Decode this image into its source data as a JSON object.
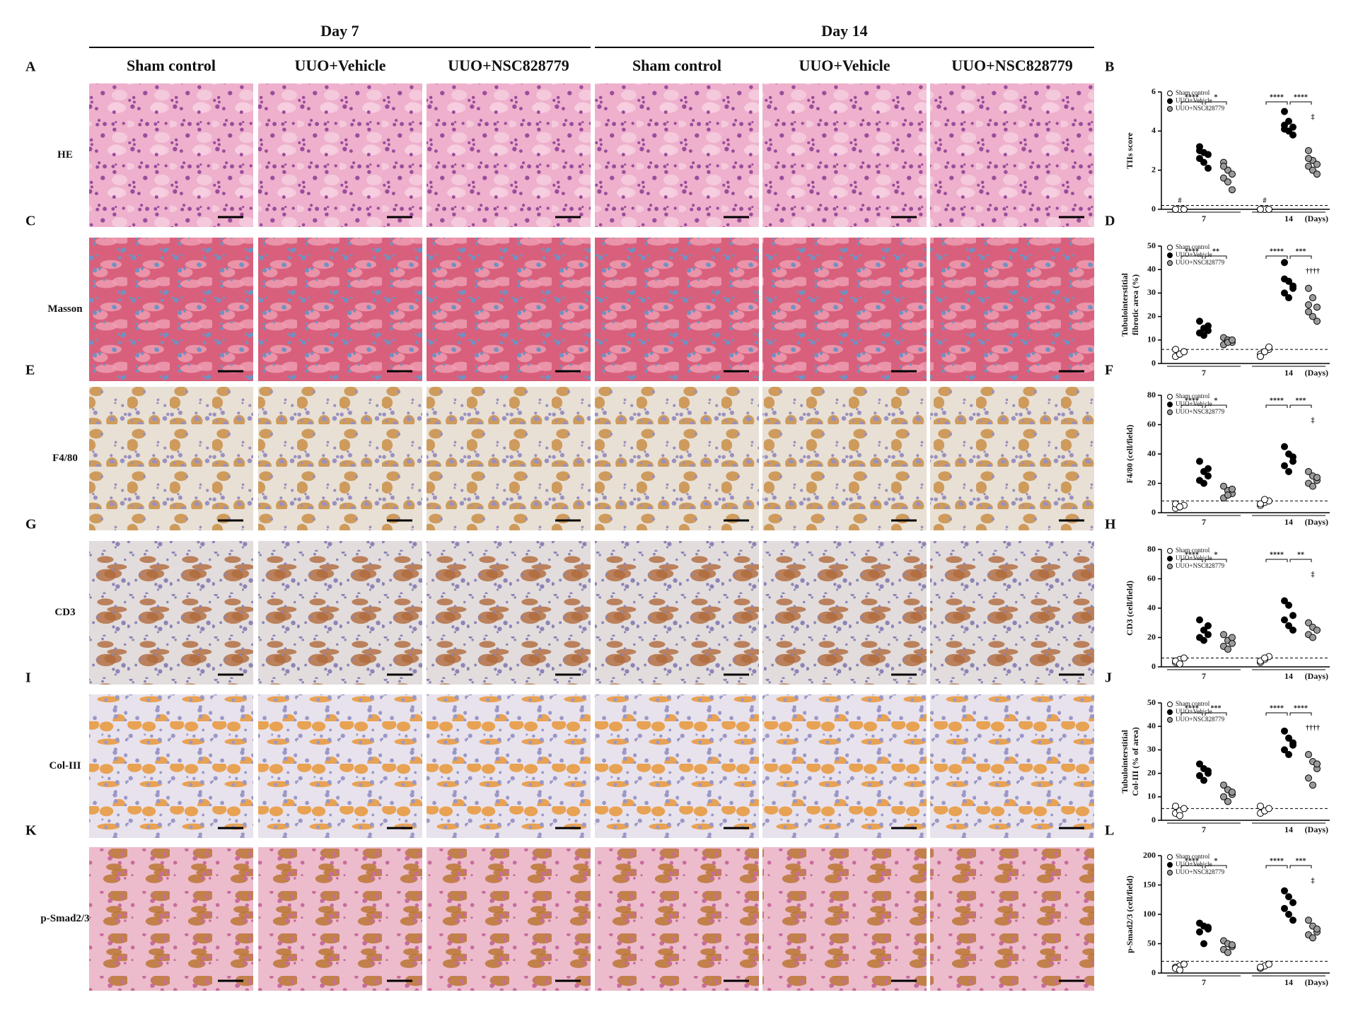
{
  "figure": {
    "column_groups": [
      "Day 7",
      "Day 14"
    ],
    "columns": [
      "Sham control",
      "UUO+Vehicle",
      "UUO+NSC828779",
      "Sham control",
      "UUO+Vehicle",
      "UUO+NSC828779"
    ],
    "rows": [
      {
        "letter": "A",
        "label": "HE"
      },
      {
        "letter": "C",
        "label": "Masson"
      },
      {
        "letter": "E",
        "label": "F4/80"
      },
      {
        "letter": "G",
        "label": "CD3"
      },
      {
        "letter": "I",
        "label": "Col-III"
      },
      {
        "letter": "K",
        "label": "p-Smad2/3"
      }
    ]
  },
  "chart_data": [
    {
      "type": "scatter",
      "letter": "B",
      "ylabel": [
        "TIIs score"
      ],
      "ylim": [
        0,
        6
      ],
      "yticks": [
        0,
        2,
        4,
        6
      ],
      "categories": [
        "7",
        "14"
      ],
      "xlabel": "(Days)",
      "reference_line": 0.2,
      "series": [
        {
          "name": "Sham control",
          "color": "#ffffff",
          "values": [
            [
              0,
              0,
              0,
              0,
              0,
              0,
              0
            ],
            [
              0,
              0,
              0,
              0,
              0,
              0,
              0
            ]
          ]
        },
        {
          "name": "UUO+Vehicle",
          "color": "#000000",
          "values": [
            [
              3.2,
              2.9,
              2.8,
              2.6,
              2.4,
              2.1,
              3.0
            ],
            [
              5.0,
              4.5,
              4.2,
              4.1,
              4.0,
              3.8,
              4.3
            ]
          ]
        },
        {
          "name": "UUO+NSC828779",
          "color": "#9a9a9a",
          "values": [
            [
              2.4,
              2.0,
              1.8,
              1.6,
              1.4,
              1.0,
              2.2
            ],
            [
              3.0,
              2.5,
              2.3,
              2.2,
              2.0,
              1.8,
              2.6
            ]
          ]
        }
      ],
      "brackets": [
        [
          "****",
          "*"
        ],
        [
          "****",
          "****"
        ]
      ],
      "marks_over_treated": [
        null,
        "‡"
      ],
      "marks_over_sham": [
        "#",
        "#"
      ]
    },
    {
      "type": "scatter",
      "letter": "D",
      "ylabel": [
        "Tubulointerstitial",
        "fibrotic area (%)"
      ],
      "ylim": [
        0,
        50
      ],
      "yticks": [
        0,
        10,
        20,
        30,
        40,
        50
      ],
      "categories": [
        "7",
        "14"
      ],
      "xlabel": "(Days)",
      "reference_line": 6,
      "series": [
        {
          "name": "Sham control",
          "color": "#ffffff",
          "values": [
            [
              3,
              4,
              5,
              6,
              4,
              5
            ],
            [
              4,
              5,
              6,
              3,
              5,
              7
            ]
          ]
        },
        {
          "name": "UUO+Vehicle",
          "color": "#000000",
          "values": [
            [
              18,
              15,
              14,
              13,
              12,
              16
            ],
            [
              43,
              35,
              33,
              30,
              28,
              32,
              36
            ]
          ]
        },
        {
          "name": "UUO+NSC828779",
          "color": "#9a9a9a",
          "values": [
            [
              11,
              10,
              9,
              8,
              9,
              10
            ],
            [
              32,
              28,
              24,
              22,
              20,
              18,
              25
            ]
          ]
        }
      ],
      "brackets": [
        [
          "****",
          "**"
        ],
        [
          "****",
          "***"
        ]
      ],
      "marks_over_treated": [
        null,
        "††††"
      ],
      "marks_over_sham": [
        null,
        null
      ]
    },
    {
      "type": "scatter",
      "letter": "F",
      "ylabel": [
        "F4/80 (cell/field)"
      ],
      "ylim": [
        0,
        80
      ],
      "yticks": [
        0,
        20,
        40,
        60,
        80
      ],
      "categories": [
        "7",
        "14"
      ],
      "xlabel": "(Days)",
      "reference_line": 8,
      "series": [
        {
          "name": "Sham control",
          "color": "#ffffff",
          "values": [
            [
              3,
              4,
              5,
              6,
              4
            ],
            [
              5,
              7,
              8,
              6,
              9
            ]
          ]
        },
        {
          "name": "UUO+Vehicle",
          "color": "#000000",
          "values": [
            [
              35,
              28,
              25,
              22,
              20,
              30
            ],
            [
              45,
              40,
              35,
              32,
              28,
              38
            ]
          ]
        },
        {
          "name": "UUO+NSC828779",
          "color": "#9a9a9a",
          "values": [
            [
              18,
              15,
              13,
              10,
              12,
              16
            ],
            [
              28,
              25,
              22,
              20,
              18,
              24
            ]
          ]
        }
      ],
      "brackets": [
        [
          "****",
          "*"
        ],
        [
          "****",
          "***"
        ]
      ],
      "marks_over_treated": [
        null,
        "‡"
      ],
      "marks_over_sham": [
        null,
        null
      ]
    },
    {
      "type": "scatter",
      "letter": "H",
      "ylabel": [
        "CD3 (cell/field)"
      ],
      "ylim": [
        0,
        80
      ],
      "yticks": [
        0,
        20,
        40,
        60,
        80
      ],
      "categories": [
        "7",
        "14"
      ],
      "xlabel": "(Days)",
      "reference_line": 6,
      "series": [
        {
          "name": "Sham control",
          "color": "#ffffff",
          "values": [
            [
              3,
              5,
              6,
              4,
              2
            ],
            [
              3,
              5,
              7,
              4,
              6
            ]
          ]
        },
        {
          "name": "UUO+Vehicle",
          "color": "#000000",
          "values": [
            [
              32,
              25,
              22,
              20,
              18,
              28
            ],
            [
              45,
              42,
              35,
              32,
              28,
              25
            ]
          ]
        },
        {
          "name": "UUO+NSC828779",
          "color": "#9a9a9a",
          "values": [
            [
              22,
              18,
              16,
              14,
              12,
              20
            ],
            [
              30,
              27,
              25,
              22,
              20
            ]
          ]
        }
      ],
      "brackets": [
        [
          "****",
          "*"
        ],
        [
          "****",
          "**"
        ]
      ],
      "marks_over_treated": [
        null,
        "‡"
      ],
      "marks_over_sham": [
        null,
        null
      ]
    },
    {
      "type": "scatter",
      "letter": "J",
      "ylabel": [
        "Tubulointerstitial",
        "Col-III (% of area)"
      ],
      "ylim": [
        0,
        50
      ],
      "yticks": [
        0,
        10,
        20,
        30,
        40,
        50
      ],
      "categories": [
        "7",
        "14"
      ],
      "xlabel": "(Days)",
      "reference_line": 5,
      "series": [
        {
          "name": "Sham control",
          "color": "#ffffff",
          "values": [
            [
              3,
              4,
              5,
              6,
              2
            ],
            [
              3,
              4,
              5,
              6
            ]
          ]
        },
        {
          "name": "UUO+Vehicle",
          "color": "#000000",
          "values": [
            [
              24,
              22,
              20,
              19,
              17,
              21
            ],
            [
              38,
              35,
              33,
              30,
              28,
              32
            ]
          ]
        },
        {
          "name": "UUO+NSC828779",
          "color": "#9a9a9a",
          "values": [
            [
              15,
              13,
              11,
              10,
              8,
              12
            ],
            [
              28,
              25,
              22,
              18,
              15,
              24
            ]
          ]
        }
      ],
      "brackets": [
        [
          "****",
          "***"
        ],
        [
          "****",
          "****"
        ]
      ],
      "marks_over_treated": [
        null,
        "††††"
      ],
      "marks_over_sham": [
        null,
        null
      ]
    },
    {
      "type": "scatter",
      "letter": "L",
      "ylabel": [
        "p-Smad2/3 (cell/field)"
      ],
      "ylim": [
        0,
        200
      ],
      "yticks": [
        0,
        50,
        100,
        150,
        200
      ],
      "categories": [
        "7",
        "14"
      ],
      "xlabel": "(Days)",
      "reference_line": 20,
      "series": [
        {
          "name": "Sham control",
          "color": "#ffffff",
          "values": [
            [
              10,
              12,
              15,
              8,
              5
            ],
            [
              8,
              12,
              15,
              10
            ]
          ]
        },
        {
          "name": "UUO+Vehicle",
          "color": "#000000",
          "values": [
            [
              85,
              80,
              75,
              70,
              50,
              78
            ],
            [
              140,
              130,
              120,
              110,
              100,
              90
            ]
          ]
        },
        {
          "name": "UUO+NSC828779",
          "color": "#9a9a9a",
          "values": [
            [
              55,
              50,
              45,
              40,
              35,
              48
            ],
            [
              90,
              80,
              70,
              65,
              60,
              75
            ]
          ]
        }
      ],
      "brackets": [
        [
          "****",
          "*"
        ],
        [
          "****",
          "***"
        ]
      ],
      "marks_over_treated": [
        null,
        "‡"
      ],
      "marks_over_sham": [
        null,
        null
      ]
    }
  ]
}
